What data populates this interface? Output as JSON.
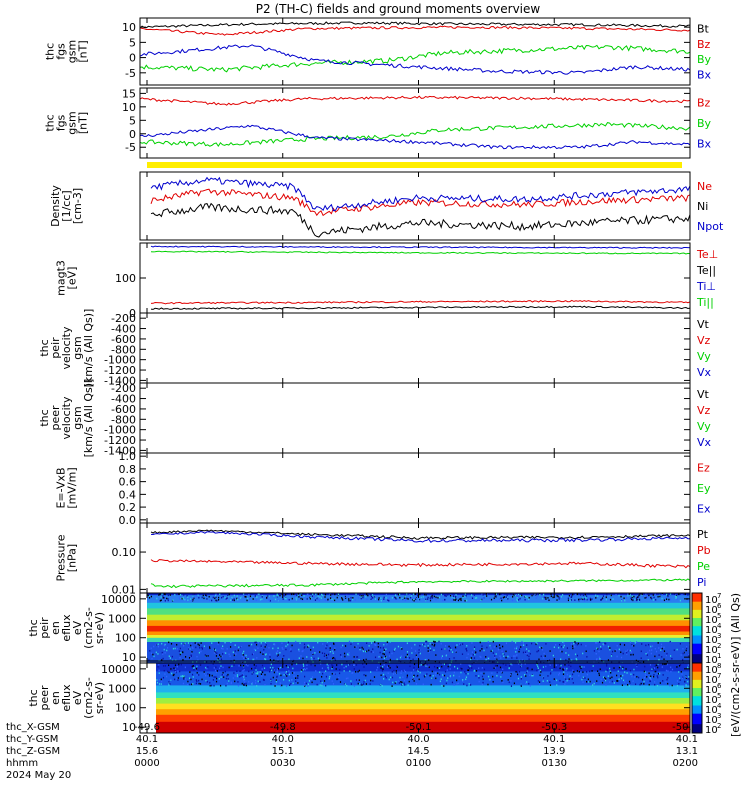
{
  "title": "P2 (TH-C) fields and ground moments overview",
  "footer": {
    "rows": [
      {
        "label": "thc_X-GSM",
        "values": [
          "-49.6",
          "-49.8",
          "-50.1",
          "-50.3",
          "-50.5"
        ]
      },
      {
        "label": "thc_Y-GSM",
        "values": [
          "40.1",
          "40.0",
          "40.0",
          "40.1",
          "40.1"
        ]
      },
      {
        "label": "thc_Z-GSM",
        "values": [
          "15.6",
          "15.1",
          "14.5",
          "13.9",
          "13.1"
        ]
      },
      {
        "label": "hhmm",
        "values": [
          "0000",
          "0030",
          "0100",
          "0130",
          "0200"
        ]
      }
    ],
    "date": "2024 May 20"
  },
  "colors": {
    "black": "#000000",
    "red": "#e00000",
    "green": "#00d000",
    "blue": "#0000cc",
    "yellow": "#ffee00"
  },
  "chart_data": [
    {
      "id": "p1",
      "type": "line",
      "ylabel_lines": [
        "thc",
        "fgs",
        "gsm",
        "[nT]"
      ],
      "yticks": [
        10,
        5,
        0,
        -5
      ],
      "ylim": [
        -9,
        13
      ],
      "x": [
        "0000",
        "0030",
        "0100",
        "0130",
        "0200"
      ],
      "series": [
        {
          "name": "Bt",
          "color": "black",
          "pattern": [
            [
              0,
              10
            ],
            [
              0.2,
              11
            ],
            [
              0.4,
              11.4
            ],
            [
              0.6,
              11
            ],
            [
              0.8,
              10.8
            ],
            [
              1,
              10.3
            ]
          ],
          "noise": 0.4
        },
        {
          "name": "Bz",
          "color": "red",
          "pattern": [
            [
              0,
              9.5
            ],
            [
              0.15,
              7.5
            ],
            [
              0.3,
              9.5
            ],
            [
              0.45,
              9.8
            ],
            [
              0.6,
              10
            ],
            [
              0.8,
              9.6
            ],
            [
              1,
              9
            ]
          ],
          "noise": 0.4
        },
        {
          "name": "By",
          "color": "green",
          "pattern": [
            [
              0,
              -3
            ],
            [
              0.15,
              -4
            ],
            [
              0.3,
              -2
            ],
            [
              0.45,
              -1
            ],
            [
              0.55,
              1.5
            ],
            [
              0.7,
              2.5
            ],
            [
              0.85,
              3.5
            ],
            [
              1,
              2
            ]
          ],
          "noise": 0.8
        },
        {
          "name": "Bx",
          "color": "blue",
          "pattern": [
            [
              0,
              1
            ],
            [
              0.1,
              2.5
            ],
            [
              0.2,
              4
            ],
            [
              0.32,
              -1
            ],
            [
              0.5,
              -3
            ],
            [
              0.65,
              -4.5
            ],
            [
              0.8,
              -5
            ],
            [
              0.9,
              -3
            ],
            [
              1,
              -4
            ]
          ],
          "noise": 0.6
        }
      ]
    },
    {
      "id": "p2",
      "type": "line",
      "ylabel_lines": [
        "thc",
        "fgs",
        "gsm",
        "[nT]"
      ],
      "yticks": [
        15,
        10,
        5,
        0,
        -5
      ],
      "ylim": [
        -9,
        17
      ],
      "x": [
        "0000",
        "0030",
        "0100",
        "0130",
        "0200"
      ],
      "series": [
        {
          "name": "Bz",
          "color": "red",
          "pattern": [
            [
              0,
              13
            ],
            [
              0.15,
              11
            ],
            [
              0.3,
              13
            ],
            [
              0.5,
              13.5
            ],
            [
              0.7,
              13.2
            ],
            [
              1,
              12
            ]
          ],
          "noise": 0.5
        },
        {
          "name": "By",
          "color": "green",
          "pattern": [
            [
              0,
              -3
            ],
            [
              0.15,
              -4
            ],
            [
              0.3,
              -2
            ],
            [
              0.45,
              -1
            ],
            [
              0.55,
              1.5
            ],
            [
              0.7,
              2.5
            ],
            [
              0.85,
              3.5
            ],
            [
              1,
              2
            ]
          ],
          "noise": 0.8
        },
        {
          "name": "Bx",
          "color": "blue",
          "pattern": [
            [
              0,
              -1
            ],
            [
              0.1,
              1
            ],
            [
              0.2,
              3
            ],
            [
              0.32,
              -1.5
            ],
            [
              0.5,
              -3
            ],
            [
              0.65,
              -5
            ],
            [
              0.8,
              -5
            ],
            [
              0.9,
              -3
            ],
            [
              1,
              -4
            ]
          ],
          "noise": 0.6
        }
      ]
    },
    {
      "id": "p3",
      "type": "line",
      "ylabel_lines": [
        "Density",
        "[1/cc]",
        "[cm-3]"
      ],
      "yticks": [],
      "ylim": [
        0,
        1
      ],
      "x": [
        "0000",
        "0030",
        "0100",
        "0130",
        "0200"
      ],
      "series": [
        {
          "name": "Ne",
          "color": "red",
          "pattern": [
            [
              0,
              0.55
            ],
            [
              0.12,
              0.72
            ],
            [
              0.28,
              0.62
            ],
            [
              0.32,
              0.4
            ],
            [
              0.5,
              0.55
            ],
            [
              0.7,
              0.52
            ],
            [
              0.85,
              0.58
            ],
            [
              1,
              0.62
            ]
          ],
          "noise": 0.05
        },
        {
          "name": "Ni",
          "color": "black",
          "pattern": [
            [
              0,
              0.35
            ],
            [
              0.12,
              0.48
            ],
            [
              0.28,
              0.42
            ],
            [
              0.32,
              0.1
            ],
            [
              0.5,
              0.25
            ],
            [
              0.7,
              0.2
            ],
            [
              0.85,
              0.27
            ],
            [
              1,
              0.32
            ]
          ],
          "noise": 0.06
        },
        {
          "name": "Npot",
          "color": "blue",
          "pattern": [
            [
              0,
              0.75
            ],
            [
              0.12,
              0.88
            ],
            [
              0.28,
              0.78
            ],
            [
              0.32,
              0.45
            ],
            [
              0.5,
              0.62
            ],
            [
              0.7,
              0.6
            ],
            [
              0.85,
              0.68
            ],
            [
              1,
              0.75
            ]
          ],
          "noise": 0.05
        }
      ]
    },
    {
      "id": "p4",
      "type": "line",
      "ylabel_lines": [
        "magt3",
        "[eV]"
      ],
      "yticks": [
        100,
        0
      ],
      "ylim": [
        0,
        200
      ],
      "x": [
        "0000",
        "0030",
        "0100",
        "0130",
        "0200"
      ],
      "series": [
        {
          "name": "Te⊥",
          "color": "red",
          "pattern": [
            [
              0,
              28
            ],
            [
              0.3,
              30
            ],
            [
              0.5,
              32
            ],
            [
              0.8,
              34
            ],
            [
              1,
              30
            ]
          ],
          "noise": 2
        },
        {
          "name": "Te||",
          "color": "black",
          "pattern": [
            [
              0,
              12
            ],
            [
              0.3,
              14
            ],
            [
              0.5,
              16
            ],
            [
              0.8,
              18
            ],
            [
              1,
              14
            ]
          ],
          "noise": 2
        },
        {
          "name": "Ti⊥",
          "color": "blue",
          "pattern": [
            [
              0,
              190
            ],
            [
              0.5,
              188
            ],
            [
              1,
              186
            ]
          ],
          "noise": 1.5
        },
        {
          "name": "Ti||",
          "color": "green",
          "pattern": [
            [
              0,
              176
            ],
            [
              0.5,
              172
            ],
            [
              1,
              170
            ]
          ],
          "noise": 1.5
        }
      ]
    },
    {
      "id": "p5",
      "type": "line",
      "ylabel_lines": [
        "thc",
        "peir",
        "velocity",
        "gsm",
        "[km/s (All Qs)]"
      ],
      "yticks": [
        -200,
        -400,
        -600,
        -800,
        -1000,
        -1200,
        -1400
      ],
      "ylim": [
        -1450,
        -100
      ],
      "x": [
        "0000",
        "0030",
        "0100",
        "0130",
        "0200"
      ],
      "series": [
        {
          "name": "Vt",
          "color": "black"
        },
        {
          "name": "Vz",
          "color": "red"
        },
        {
          "name": "Vy",
          "color": "green"
        },
        {
          "name": "Vx",
          "color": "blue"
        }
      ]
    },
    {
      "id": "p6",
      "type": "line",
      "ylabel_lines": [
        "thc",
        "peer",
        "velocity",
        "gsm",
        "[km/s (All Qs)]"
      ],
      "yticks": [
        -200,
        -400,
        -600,
        -800,
        -1000,
        -1200,
        -1400
      ],
      "ylim": [
        -1450,
        -100
      ],
      "x": [
        "0000",
        "0030",
        "0100",
        "0130",
        "0200"
      ],
      "series": [
        {
          "name": "Vt",
          "color": "black"
        },
        {
          "name": "Vz",
          "color": "red"
        },
        {
          "name": "Vy",
          "color": "green"
        },
        {
          "name": "Vx",
          "color": "blue"
        }
      ]
    },
    {
      "id": "p7",
      "type": "line",
      "ylabel_lines": [
        "E=-VxB",
        "[mV/m]"
      ],
      "yticks": [
        1.0,
        0.8,
        0.6,
        0.4,
        0.2,
        0.0
      ],
      "ylim": [
        -0.05,
        1.05
      ],
      "x": [
        "0000",
        "0030",
        "0100",
        "0130",
        "0200"
      ],
      "series": [
        {
          "name": "Ez",
          "color": "red"
        },
        {
          "name": "Ey",
          "color": "green"
        },
        {
          "name": "Ex",
          "color": "blue"
        }
      ]
    },
    {
      "id": "p8",
      "type": "line",
      "log": true,
      "ylabel_lines": [
        "Pressure",
        "[nPa]"
      ],
      "yticks": [
        0.1,
        0.01
      ],
      "ytick_labels": [
        "0.10",
        "0.01"
      ],
      "ylim": [
        0.008,
        0.6
      ],
      "x": [
        "0000",
        "0030",
        "0100",
        "0130",
        "0200"
      ],
      "series": [
        {
          "name": "Pt",
          "color": "black",
          "pattern": [
            [
              0,
              0.32
            ],
            [
              0.12,
              0.38
            ],
            [
              0.3,
              0.3
            ],
            [
              0.5,
              0.24
            ],
            [
              0.8,
              0.25
            ],
            [
              1,
              0.28
            ]
          ],
          "noise": 0.02
        },
        {
          "name": "Pb",
          "color": "red",
          "pattern": [
            [
              0,
              0.06
            ],
            [
              0.3,
              0.05
            ],
            [
              0.5,
              0.045
            ],
            [
              0.8,
              0.05
            ],
            [
              1,
              0.04
            ]
          ],
          "noise": 0.004
        },
        {
          "name": "Pe",
          "color": "green",
          "pattern": [
            [
              0,
              0.018
            ],
            [
              0.03,
              0.012
            ],
            [
              0.3,
              0.013
            ],
            [
              0.5,
              0.016
            ],
            [
              0.8,
              0.017
            ],
            [
              1,
              0.018
            ]
          ],
          "noise": 0.001
        },
        {
          "name": "Pi",
          "color": "blue",
          "pattern": [
            [
              0,
              0.28
            ],
            [
              0.12,
              0.34
            ],
            [
              0.3,
              0.26
            ],
            [
              0.5,
              0.2
            ],
            [
              0.8,
              0.21
            ],
            [
              1,
              0.24
            ]
          ],
          "noise": 0.02
        }
      ]
    },
    {
      "id": "p9",
      "type": "heatmap",
      "ylabel_lines": [
        "thc",
        "peir",
        "en",
        "eflux",
        "eV",
        "(cm2-s-",
        "sr-eV)"
      ],
      "yticks": [
        10000,
        1000,
        100,
        10
      ],
      "ytick_labels": [
        "10000",
        "1000",
        "100",
        "10"
      ],
      "ylim": [
        5,
        20000
      ]
    },
    {
      "id": "p10",
      "type": "heatmap",
      "ylabel_lines": [
        "thc",
        "peer",
        "en",
        "eflux",
        "eV",
        "(cm2-s-",
        "sr-eV)"
      ],
      "yticks": [
        10000,
        1000,
        100,
        10
      ],
      "ytick_labels": [
        "10000",
        "1000",
        "100",
        "10"
      ],
      "ylim": [
        5,
        20000
      ]
    }
  ],
  "colorbar": {
    "label": "[eV/(cm2-s-sr-eV)] (All Qs)",
    "upper_ticks": [
      "10",
      "10",
      "10",
      "10",
      "10",
      "10",
      "10"
    ],
    "upper_exponents": [
      "7",
      "6",
      "5",
      "4",
      "3",
      "2",
      "1"
    ],
    "lower_ticks": [
      "10",
      "10",
      "10",
      "10",
      "10",
      "10",
      "10"
    ],
    "lower_exponents": [
      "8",
      "7",
      "6",
      "5",
      "4",
      "3",
      "2"
    ]
  }
}
